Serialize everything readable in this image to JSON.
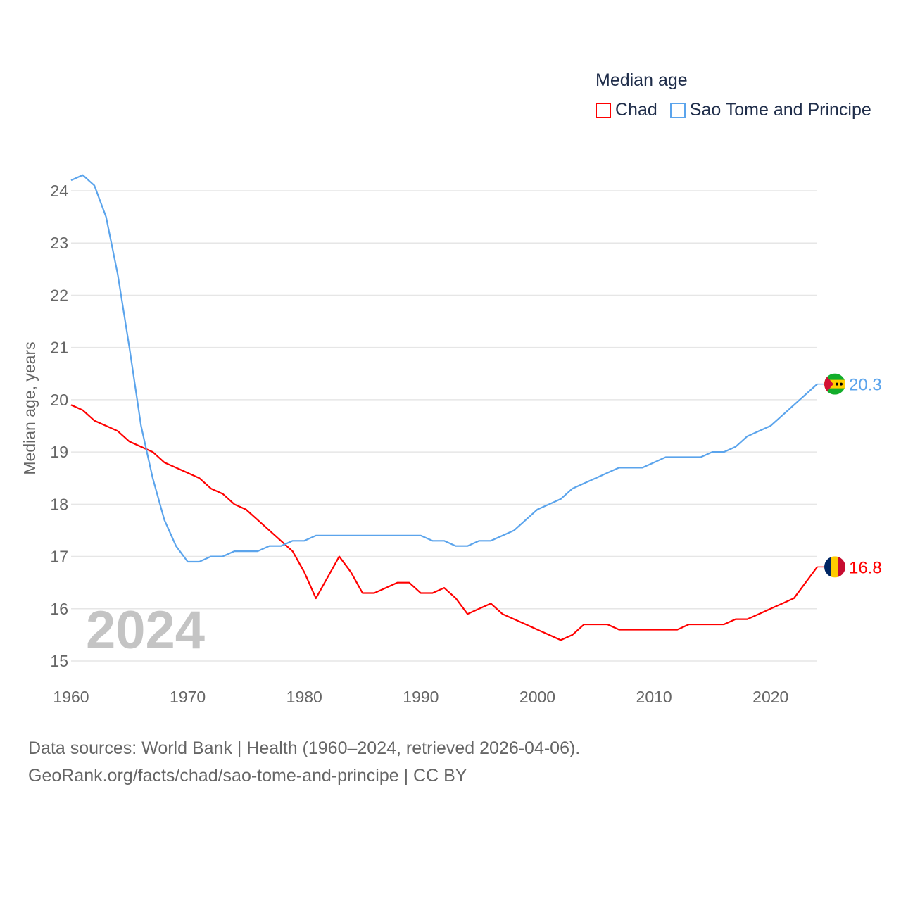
{
  "chart_data": {
    "type": "line",
    "title": "Median age",
    "ylabel": "Median age, years",
    "xlabel": "",
    "ylim": [
      15,
      24.5
    ],
    "xlim": [
      1960,
      2024
    ],
    "yticks": [
      15,
      16,
      17,
      18,
      19,
      20,
      21,
      22,
      23,
      24
    ],
    "xticks": [
      1960,
      1970,
      1980,
      1990,
      2000,
      2010,
      2020
    ],
    "grid": true,
    "legend_position": "top-right",
    "year_label": "2024",
    "x": [
      1960,
      1961,
      1962,
      1963,
      1964,
      1965,
      1966,
      1967,
      1968,
      1969,
      1970,
      1971,
      1972,
      1973,
      1974,
      1975,
      1976,
      1977,
      1978,
      1979,
      1980,
      1981,
      1982,
      1983,
      1984,
      1985,
      1986,
      1987,
      1988,
      1989,
      1990,
      1991,
      1992,
      1993,
      1994,
      1995,
      1996,
      1997,
      1998,
      1999,
      2000,
      2001,
      2002,
      2003,
      2004,
      2005,
      2006,
      2007,
      2008,
      2009,
      2010,
      2011,
      2012,
      2013,
      2014,
      2015,
      2016,
      2017,
      2018,
      2019,
      2020,
      2021,
      2022,
      2023,
      2024
    ],
    "series": [
      {
        "name": "Chad",
        "color": "#ff0000",
        "end_label": "16.8",
        "values": [
          19.9,
          19.8,
          19.6,
          19.5,
          19.4,
          19.2,
          19.1,
          19.0,
          18.8,
          18.7,
          18.6,
          18.5,
          18.3,
          18.2,
          18.0,
          17.9,
          17.7,
          17.5,
          17.3,
          17.1,
          16.7,
          16.2,
          16.6,
          17.0,
          16.7,
          16.3,
          16.3,
          16.4,
          16.5,
          16.5,
          16.3,
          16.3,
          16.4,
          16.2,
          15.9,
          16.0,
          16.1,
          15.9,
          15.8,
          15.7,
          15.6,
          15.5,
          15.4,
          15.5,
          15.7,
          15.7,
          15.7,
          15.6,
          15.6,
          15.6,
          15.6,
          15.6,
          15.6,
          15.7,
          15.7,
          15.7,
          15.7,
          15.8,
          15.8,
          15.9,
          16.0,
          16.1,
          16.2,
          16.5,
          16.8
        ]
      },
      {
        "name": "Sao Tome and Principe",
        "color": "#5ba4ec",
        "end_label": "20.3",
        "values": [
          24.2,
          24.3,
          24.1,
          23.5,
          22.4,
          21.0,
          19.5,
          18.5,
          17.7,
          17.2,
          16.9,
          16.9,
          17.0,
          17.0,
          17.1,
          17.1,
          17.1,
          17.2,
          17.2,
          17.3,
          17.3,
          17.4,
          17.4,
          17.4,
          17.4,
          17.4,
          17.4,
          17.4,
          17.4,
          17.4,
          17.4,
          17.3,
          17.3,
          17.2,
          17.2,
          17.3,
          17.3,
          17.4,
          17.5,
          17.7,
          17.9,
          18.0,
          18.1,
          18.3,
          18.4,
          18.5,
          18.6,
          18.7,
          18.7,
          18.7,
          18.8,
          18.9,
          18.9,
          18.9,
          18.9,
          19.0,
          19.0,
          19.1,
          19.3,
          19.4,
          19.5,
          19.7,
          19.9,
          20.1,
          20.3
        ]
      }
    ]
  },
  "source": {
    "line1": "Data sources: World Bank | Health (1960–2024, retrieved 2026-04-06).",
    "line2": "GeoRank.org/facts/chad/sao-tome-and-principe | CC BY"
  }
}
